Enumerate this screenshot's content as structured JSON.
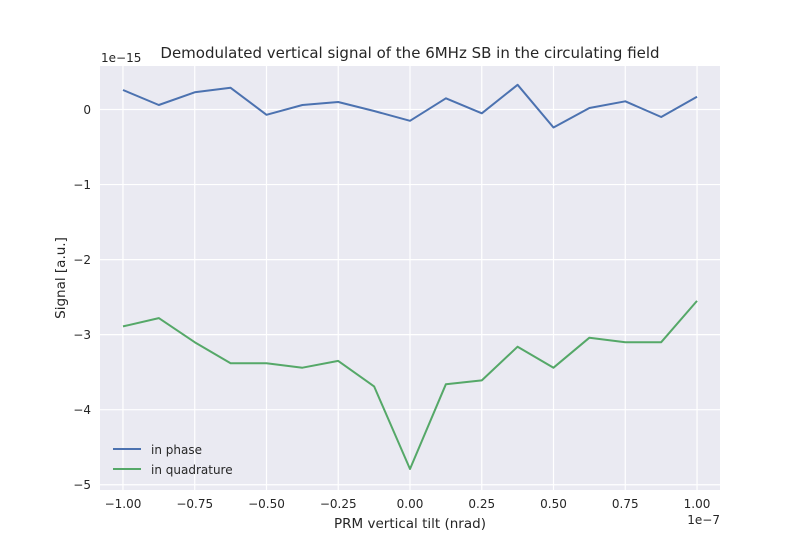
{
  "chart_data": {
    "type": "line",
    "title": "Demodulated vertical signal of the 6MHz SB in the circulating field",
    "xlabel": "PRM vertical tilt (nrad)",
    "ylabel": "Signal [a.u.]",
    "x_offset_text": "1e−7",
    "y_offset_text": "1e−15",
    "x_scale": 1e-07,
    "y_scale": 1e-15,
    "xlim": [
      -1.08,
      1.08
    ],
    "ylim": [
      -5.07,
      0.58
    ],
    "x_ticks": [
      -1.0,
      -0.75,
      -0.5,
      -0.25,
      0.0,
      0.25,
      0.5,
      0.75,
      1.0
    ],
    "x_tick_labels": [
      "−1.00",
      "−0.75",
      "−0.50",
      "−0.25",
      "0.00",
      "0.25",
      "0.50",
      "0.75",
      "1.00"
    ],
    "y_ticks": [
      -5,
      -4,
      -3,
      -2,
      -1,
      0
    ],
    "y_tick_labels": [
      "−5",
      "−4",
      "−3",
      "−2",
      "−1",
      "0"
    ],
    "grid": true,
    "legend_position": "lower-left",
    "x": [
      -1.0,
      -0.875,
      -0.75,
      -0.625,
      -0.5,
      -0.375,
      -0.25,
      -0.125,
      0.0,
      0.125,
      0.25,
      0.375,
      0.5,
      0.625,
      0.75,
      0.875,
      1.0
    ],
    "series": [
      {
        "name": "in phase",
        "color": "#4c72b0",
        "values": [
          0.26,
          0.06,
          0.23,
          0.29,
          -0.07,
          0.06,
          0.1,
          -0.02,
          -0.15,
          0.15,
          -0.05,
          0.33,
          -0.24,
          0.02,
          0.11,
          -0.1,
          0.17
        ]
      },
      {
        "name": "in quadrature",
        "color": "#55a868",
        "values": [
          -2.89,
          -2.78,
          -3.1,
          -3.38,
          -3.38,
          -3.44,
          -3.35,
          -3.69,
          -4.79,
          -3.66,
          -3.61,
          -3.16,
          -3.44,
          -3.04,
          -3.1,
          -3.1,
          -2.55
        ]
      }
    ]
  }
}
